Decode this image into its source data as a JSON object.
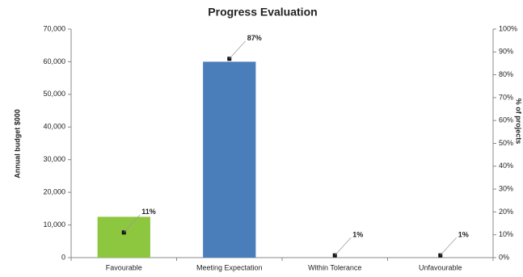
{
  "chart_data": {
    "type": "bar",
    "title": "Progress Evaluation",
    "y_label": "Annual budget $000",
    "y2_label": "% of projects",
    "categories": [
      "Favourable",
      "Meeting Expectation",
      "Within Tolerance",
      "Unfavourable"
    ],
    "series": [
      {
        "type": "bar",
        "colors": [
          "#8dc63f",
          "#4a7ebb",
          "#4a7ebb",
          "#4a7ebb"
        ],
        "values": [
          12500,
          60000,
          0,
          0
        ]
      },
      {
        "type": "scatter",
        "axis": "y2",
        "color": "#111111",
        "values": [
          11,
          87,
          1,
          1
        ],
        "value_labels": [
          "11%",
          "87%",
          "1%",
          "1%"
        ]
      }
    ],
    "ylim": [
      0,
      70000
    ],
    "yticks": [
      0,
      {
        "value": 10000,
        "label": "10,000"
      },
      {
        "value": 20000,
        "label": "20,000"
      },
      {
        "value": 30000,
        "label": "30,000"
      },
      {
        "value": 40000,
        "label": "40,000"
      },
      {
        "value": 50000,
        "label": "50,000"
      },
      {
        "value": 60000,
        "label": "60,000"
      },
      {
        "value": 70000,
        "label": "70,000"
      }
    ],
    "y2lim": [
      0,
      100
    ],
    "y2ticks": [
      {
        "value": 0,
        "label": "0%"
      },
      {
        "value": 10,
        "label": "10%"
      },
      {
        "value": 20,
        "label": "20%"
      },
      {
        "value": 30,
        "label": "30%"
      },
      {
        "value": 40,
        "label": "40%"
      },
      {
        "value": 50,
        "label": "50%"
      },
      {
        "value": 60,
        "label": "60%"
      },
      {
        "value": 70,
        "label": "70%"
      },
      {
        "value": 80,
        "label": "80%"
      },
      {
        "value": 90,
        "label": "90%"
      },
      {
        "value": 100,
        "label": "100%"
      }
    ],
    "grid": false
  }
}
